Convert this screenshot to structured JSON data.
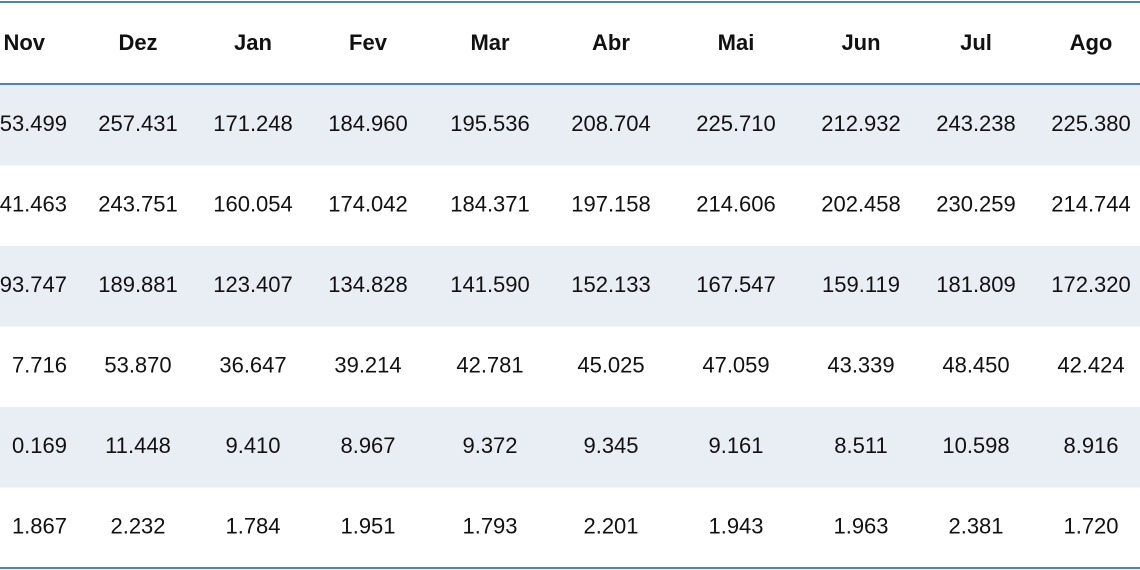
{
  "table": {
    "header": [
      "Nov",
      "Dez",
      "Jan",
      "Fev",
      "Mar",
      "Abr",
      "Mai",
      "Jun",
      "Jul",
      "Ago"
    ],
    "rows": [
      [
        "53.499",
        "257.431",
        "171.248",
        "184.960",
        "195.536",
        "208.704",
        "225.710",
        "212.932",
        "243.238",
        "225.380"
      ],
      [
        "41.463",
        "243.751",
        "160.054",
        "174.042",
        "184.371",
        "197.158",
        "214.606",
        "202.458",
        "230.259",
        "214.744"
      ],
      [
        "93.747",
        "189.881",
        "123.407",
        "134.828",
        "141.590",
        "152.133",
        "167.547",
        "159.119",
        "181.809",
        "172.320"
      ],
      [
        "7.716",
        "53.870",
        "36.647",
        "39.214",
        "42.781",
        "45.025",
        "47.059",
        "43.339",
        "48.450",
        "42.424"
      ],
      [
        "0.169",
        "11.448",
        "9.410",
        "8.967",
        "9.372",
        "9.345",
        "9.161",
        "8.511",
        "10.598",
        "8.916"
      ],
      [
        "1.867",
        "2.232",
        "1.784",
        "1.951",
        "1.793",
        "2.201",
        "1.943",
        "1.963",
        "2.381",
        "1.720"
      ]
    ]
  }
}
